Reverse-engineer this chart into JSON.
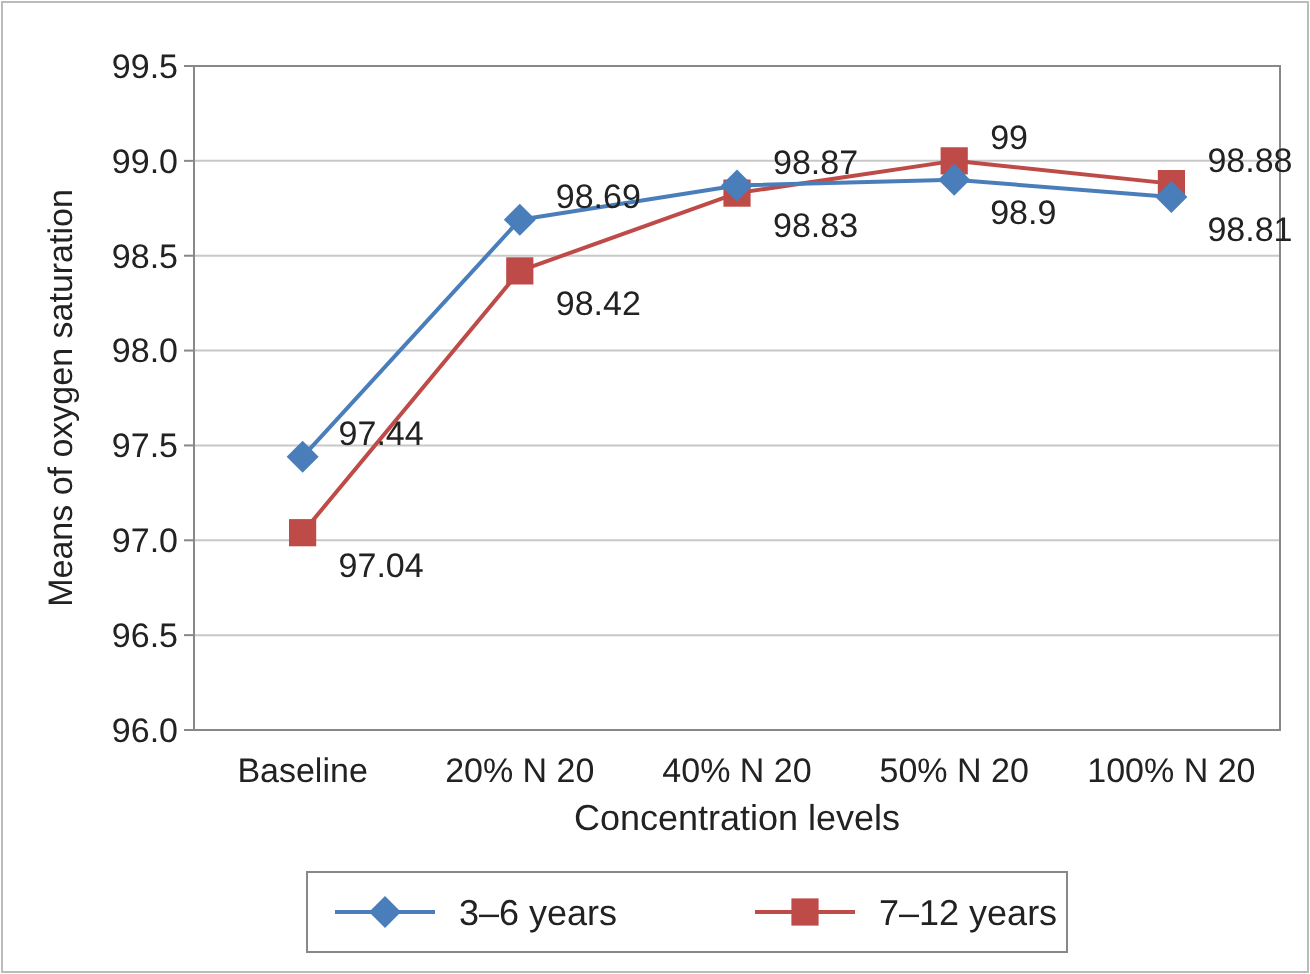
{
  "chart_data": {
    "type": "line",
    "xlabel": "Concentration levels",
    "ylabel": "Means of oxygen saturation",
    "categories": [
      "Baseline",
      "20% N 20",
      "40% N 20",
      "50% N 20",
      "100% N 20"
    ],
    "series": [
      {
        "name": "3–6 years",
        "color": "#4a7ebb",
        "marker": "diamond",
        "values": [
          97.44,
          98.69,
          98.87,
          98.9,
          98.81
        ],
        "value_labels": [
          "97.44",
          "98.69",
          "98.87",
          "98.9",
          "98.81"
        ]
      },
      {
        "name": "7–12 years",
        "color": "#be4b48",
        "marker": "square",
        "values": [
          97.04,
          98.42,
          98.83,
          99,
          98.88
        ],
        "value_labels": [
          "97.04",
          "98.42",
          "98.83",
          "99",
          "98.88"
        ]
      }
    ],
    "ylim": [
      96,
      99.5
    ],
    "yticks": [
      {
        "value": 96,
        "label": "96.0"
      },
      {
        "value": 96.5,
        "label": "96.5"
      },
      {
        "value": 97,
        "label": "97.0"
      },
      {
        "value": 97.5,
        "label": "97.5"
      },
      {
        "value": 98,
        "label": "98.0"
      },
      {
        "value": 98.5,
        "label": "98.5"
      },
      {
        "value": 99,
        "label": "99.0"
      },
      {
        "value": 99.5,
        "label": "99.5"
      }
    ],
    "grid": "y",
    "legend": "bottom"
  }
}
